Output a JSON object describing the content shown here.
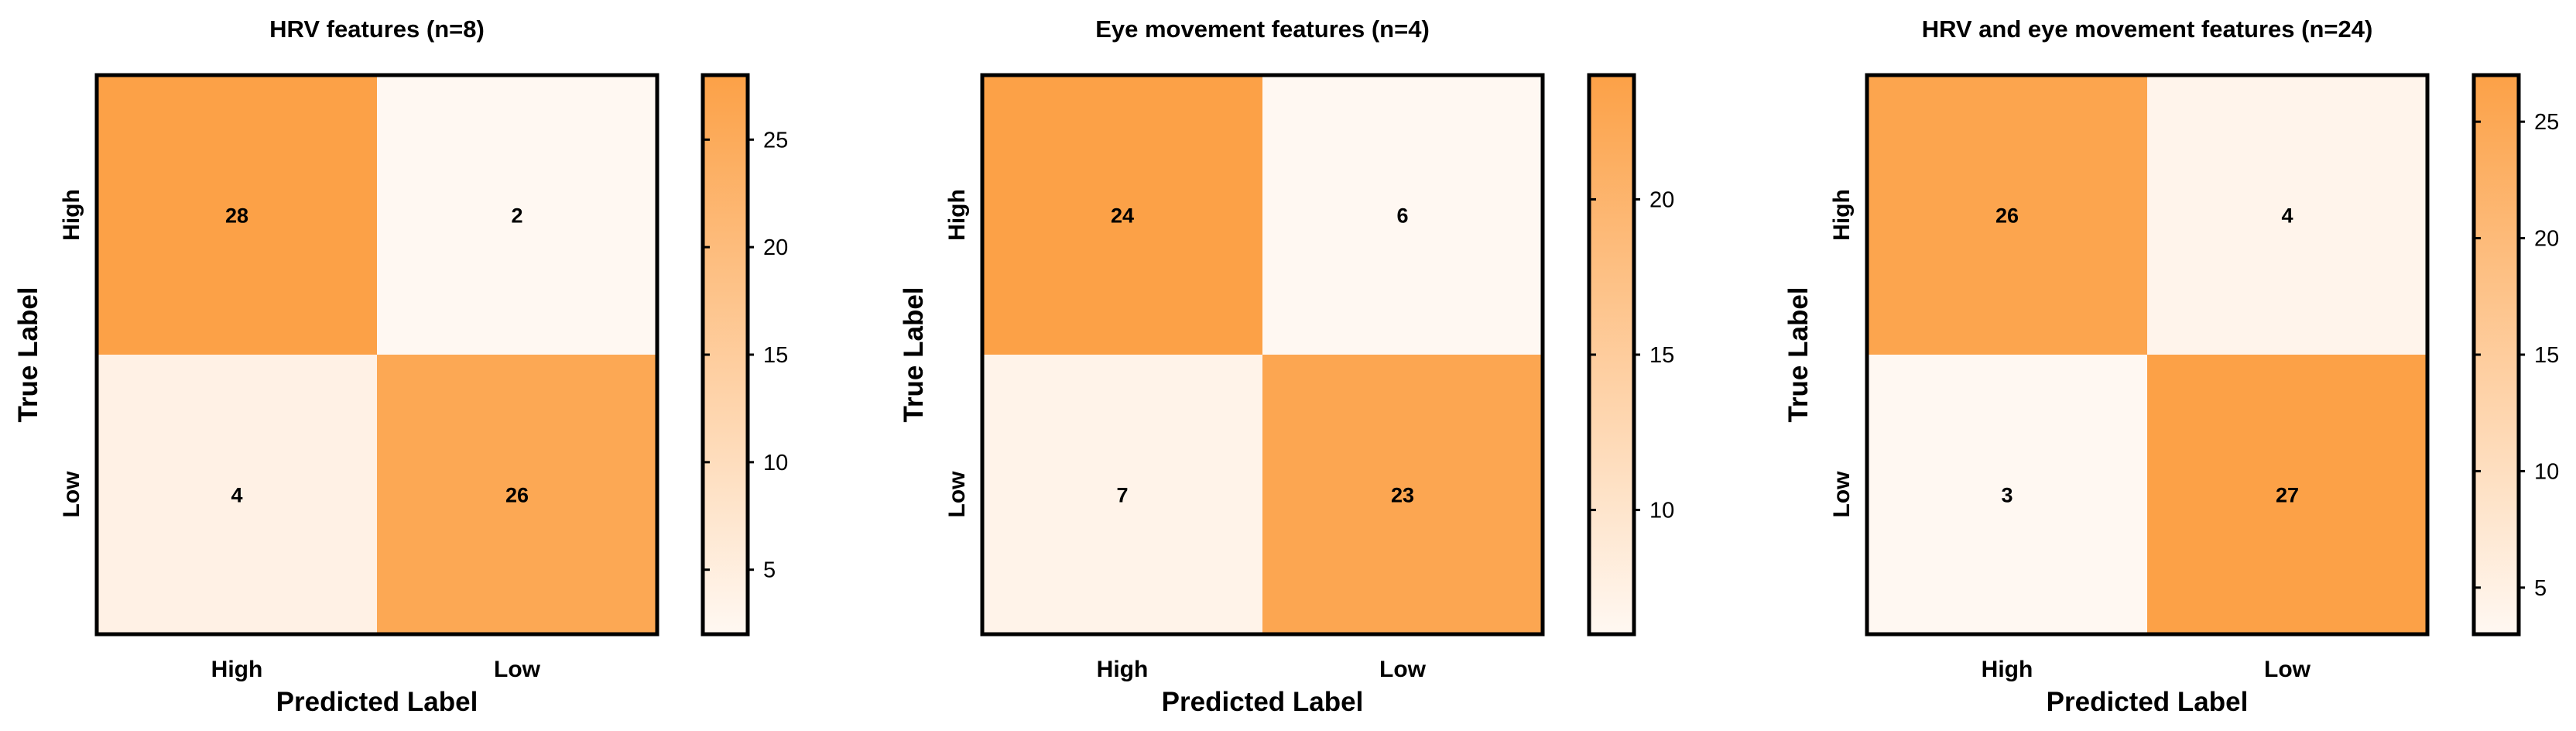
{
  "chart_data": [
    {
      "type": "heatmap",
      "title": "HRV features (n=8)",
      "xlabel": "Predicted Label",
      "ylabel": "True Label",
      "x_categories": [
        "High",
        "Low"
      ],
      "y_categories": [
        "High",
        "Low"
      ],
      "values": [
        [
          28,
          2
        ],
        [
          4,
          26
        ]
      ],
      "colorbar": {
        "min": 2,
        "max": 28,
        "ticks": [
          5,
          10,
          15,
          20,
          25
        ]
      }
    },
    {
      "type": "heatmap",
      "title": "Eye movement features (n=4)",
      "xlabel": "Predicted Label",
      "ylabel": "True Label",
      "x_categories": [
        "High",
        "Low"
      ],
      "y_categories": [
        "High",
        "Low"
      ],
      "values": [
        [
          24,
          6
        ],
        [
          7,
          23
        ]
      ],
      "colorbar": {
        "min": 6,
        "max": 24,
        "ticks": [
          10,
          15,
          20
        ]
      }
    },
    {
      "type": "heatmap",
      "title": "HRV and eye movement features (n=24)",
      "xlabel": "Predicted Label",
      "ylabel": "True Label",
      "x_categories": [
        "High",
        "Low"
      ],
      "y_categories": [
        "High",
        "Low"
      ],
      "values": [
        [
          26,
          4
        ],
        [
          3,
          27
        ]
      ],
      "colorbar": {
        "min": 3,
        "max": 27,
        "ticks": [
          5,
          10,
          15,
          20,
          25
        ]
      }
    }
  ],
  "colors": {
    "low": "#fff8f2",
    "high": "#fca147",
    "frame": "#000000",
    "text": "#000000"
  }
}
